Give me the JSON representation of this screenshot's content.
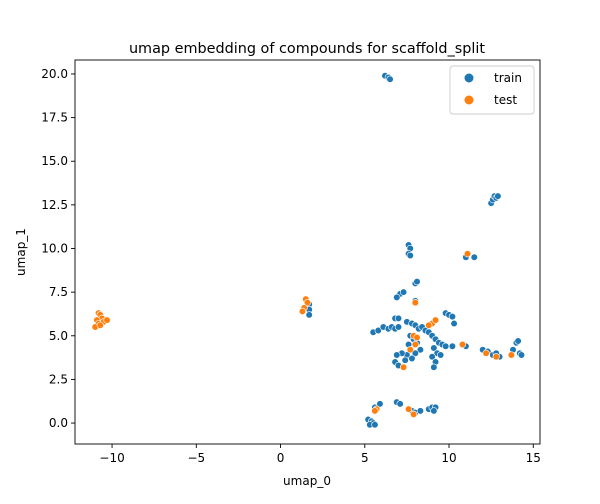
{
  "chart_data": {
    "type": "scatter",
    "title": "umap embedding of compounds for scaffold_split",
    "xlabel": "umap_0",
    "ylabel": "umap_1",
    "xlim": [
      -12.2,
      15.4
    ],
    "ylim": [
      -1.2,
      20.8
    ],
    "xticks": [
      -10,
      -5,
      0,
      5,
      10,
      15
    ],
    "xtick_labels": [
      "−10",
      "−5",
      "0",
      "5",
      "10",
      "15"
    ],
    "yticks": [
      0.0,
      2.5,
      5.0,
      7.5,
      10.0,
      12.5,
      15.0,
      17.5,
      20.0
    ],
    "ytick_labels": [
      "0.0",
      "2.5",
      "5.0",
      "7.5",
      "10.0",
      "12.5",
      "15.0",
      "17.5",
      "20.0"
    ],
    "grid": false,
    "legend_position": "top-right",
    "series": [
      {
        "name": "train",
        "color": "#1f77b4",
        "points": [
          [
            6.2,
            19.9
          ],
          [
            6.4,
            19.8
          ],
          [
            6.5,
            19.7
          ],
          [
            12.5,
            12.6
          ],
          [
            12.6,
            12.8
          ],
          [
            12.7,
            13.0
          ],
          [
            12.8,
            12.9
          ],
          [
            12.9,
            13.0
          ],
          [
            7.6,
            10.2
          ],
          [
            7.7,
            10.0
          ],
          [
            7.6,
            9.7
          ],
          [
            7.7,
            9.6
          ],
          [
            11.0,
            9.5
          ],
          [
            11.5,
            9.5
          ],
          [
            8.0,
            8.0
          ],
          [
            8.1,
            8.1
          ],
          [
            1.7,
            6.8
          ],
          [
            1.7,
            6.5
          ],
          [
            1.7,
            6.2
          ],
          [
            7.1,
            7.4
          ],
          [
            7.3,
            7.5
          ],
          [
            6.9,
            7.2
          ],
          [
            8.0,
            7.0
          ],
          [
            9.8,
            6.3
          ],
          [
            10.0,
            6.2
          ],
          [
            10.2,
            6.1
          ],
          [
            10.3,
            5.7
          ],
          [
            6.8,
            6.0
          ],
          [
            7.0,
            6.0
          ],
          [
            5.5,
            5.2
          ],
          [
            5.8,
            5.3
          ],
          [
            6.1,
            5.5
          ],
          [
            6.4,
            5.4
          ],
          [
            6.6,
            5.5
          ],
          [
            6.8,
            5.4
          ],
          [
            7.0,
            5.5
          ],
          [
            7.5,
            5.8
          ],
          [
            7.8,
            5.7
          ],
          [
            8.0,
            5.6
          ],
          [
            8.2,
            5.4
          ],
          [
            8.4,
            5.5
          ],
          [
            8.6,
            5.3
          ],
          [
            8.8,
            5.2
          ],
          [
            7.7,
            5.0
          ],
          [
            7.9,
            4.8
          ],
          [
            8.1,
            4.6
          ],
          [
            7.6,
            4.5
          ],
          [
            8.3,
            4.2
          ],
          [
            8.0,
            4.0
          ],
          [
            7.5,
            3.9
          ],
          [
            7.2,
            4.0
          ],
          [
            6.9,
            3.9
          ],
          [
            6.8,
            3.5
          ],
          [
            7.0,
            3.3
          ],
          [
            7.4,
            3.6
          ],
          [
            7.8,
            3.7
          ],
          [
            9.0,
            5.0
          ],
          [
            9.2,
            4.8
          ],
          [
            9.4,
            4.6
          ],
          [
            9.6,
            4.5
          ],
          [
            9.8,
            4.4
          ],
          [
            9.1,
            4.3
          ],
          [
            9.3,
            4.0
          ],
          [
            9.0,
            3.8
          ],
          [
            9.2,
            3.5
          ],
          [
            9.1,
            3.2
          ],
          [
            9.5,
            3.9
          ],
          [
            10.2,
            4.4
          ],
          [
            10.8,
            4.5
          ],
          [
            11.0,
            4.4
          ],
          [
            12.0,
            4.2
          ],
          [
            12.3,
            4.1
          ],
          [
            12.6,
            3.9
          ],
          [
            13.0,
            3.8
          ],
          [
            12.8,
            4.0
          ],
          [
            13.8,
            4.2
          ],
          [
            14.0,
            4.6
          ],
          [
            14.1,
            4.7
          ],
          [
            14.2,
            4.0
          ],
          [
            14.3,
            3.9
          ],
          [
            6.9,
            1.2
          ],
          [
            7.1,
            1.1
          ],
          [
            7.6,
            0.8
          ],
          [
            7.8,
            0.7
          ],
          [
            8.0,
            0.6
          ],
          [
            8.3,
            0.7
          ],
          [
            8.8,
            0.8
          ],
          [
            9.0,
            0.9
          ],
          [
            9.2,
            0.9
          ],
          [
            9.1,
            0.7
          ],
          [
            5.6,
            0.9
          ],
          [
            5.9,
            1.1
          ],
          [
            5.2,
            0.2
          ],
          [
            5.4,
            0.1
          ],
          [
            5.5,
            0.0
          ],
          [
            5.3,
            -0.1
          ],
          [
            5.6,
            -0.1
          ]
        ]
      },
      {
        "name": "test",
        "color": "#ff7f0e",
        "points": [
          [
            -10.8,
            6.3
          ],
          [
            -10.7,
            6.2
          ],
          [
            -10.6,
            6.0
          ],
          [
            -10.9,
            5.9
          ],
          [
            -10.8,
            5.7
          ],
          [
            -11.0,
            5.5
          ],
          [
            -10.5,
            5.8
          ],
          [
            -10.3,
            5.9
          ],
          [
            -10.7,
            5.6
          ],
          [
            1.5,
            7.1
          ],
          [
            1.6,
            6.9
          ],
          [
            1.4,
            6.6
          ],
          [
            1.3,
            6.4
          ],
          [
            11.1,
            9.7
          ],
          [
            8.0,
            6.9
          ],
          [
            9.0,
            5.7
          ],
          [
            9.2,
            5.9
          ],
          [
            8.8,
            5.6
          ],
          [
            7.9,
            5.0
          ],
          [
            8.1,
            4.9
          ],
          [
            8.0,
            4.5
          ],
          [
            7.7,
            4.2
          ],
          [
            7.3,
            3.2
          ],
          [
            10.8,
            4.5
          ],
          [
            12.2,
            4.0
          ],
          [
            12.8,
            3.8
          ],
          [
            13.7,
            3.9
          ],
          [
            5.7,
            0.8
          ],
          [
            5.6,
            0.7
          ],
          [
            7.6,
            0.8
          ],
          [
            7.9,
            0.5
          ]
        ]
      }
    ]
  }
}
